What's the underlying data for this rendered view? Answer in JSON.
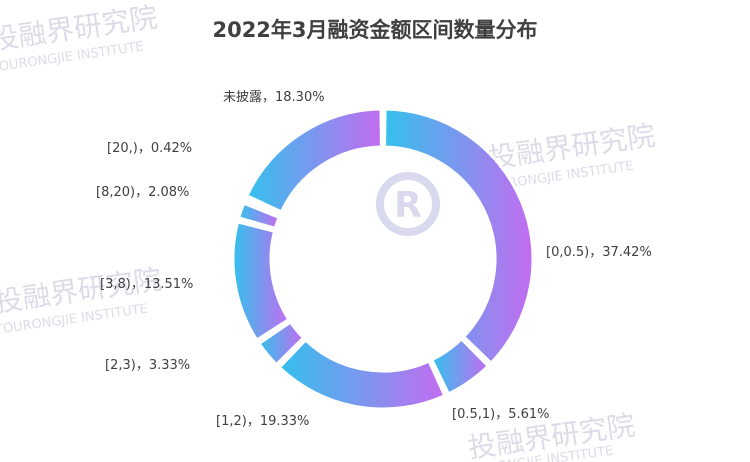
{
  "chart_data": {
    "type": "pie",
    "title": "2022年3月融资金额区间数量分布",
    "categories": [
      "[0,0.5)",
      "[0.5,1)",
      "[1,2)",
      "[2,3)",
      "[3,8)",
      "[8,20)",
      "[20,)",
      "未披露"
    ],
    "labels": [
      "[0,0.5)，37.42%",
      "[0.5,1)，5.61%",
      "[1,2)，19.33%",
      "[2,3)，3.33%",
      "[3,8)，13.51%",
      "[8,20)，2.08%",
      "[20,)，0.42%",
      "未披露，18.30%"
    ],
    "values": [
      37.42,
      5.61,
      19.33,
      3.33,
      13.51,
      2.08,
      0.42,
      18.3
    ],
    "unit": "%",
    "donut": true,
    "gradient_colors": [
      "#33c1ec",
      "#c36cf0"
    ]
  },
  "watermark": {
    "cn": "投融界研究院",
    "en": "TOURONGJIE INSTITUTE",
    "logo_letter": "R"
  }
}
